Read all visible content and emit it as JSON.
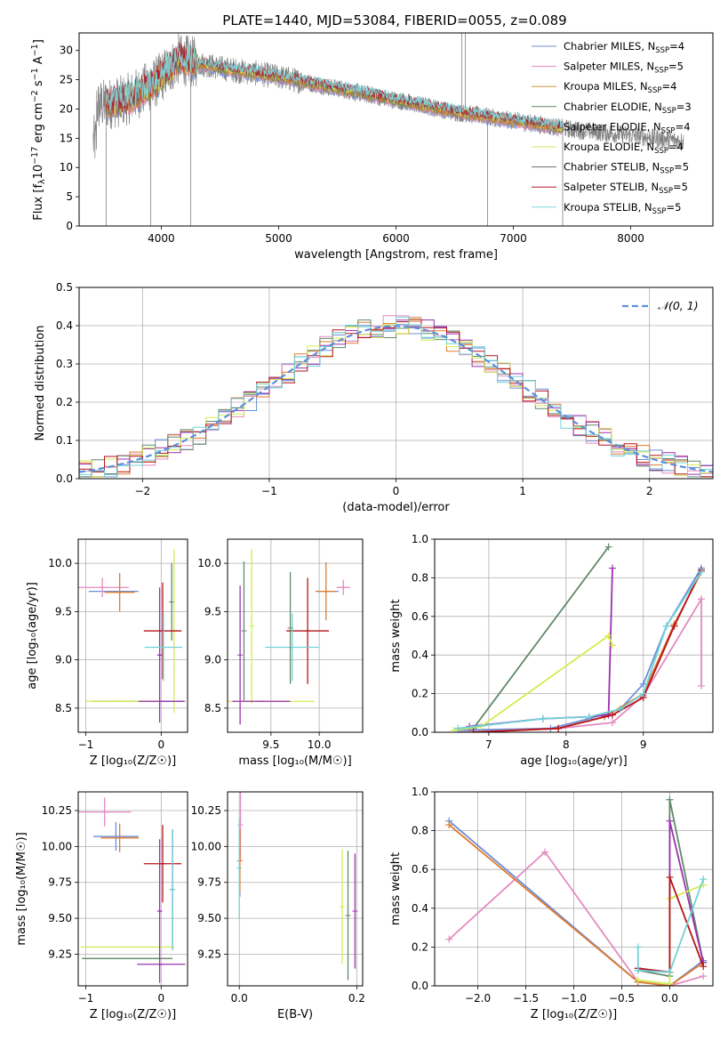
{
  "figure_title": "PLATE=1440, MJD=53084, FIBERID=0055, z=0.089",
  "colors": {
    "grid": "#b0b0b0",
    "data": "#808080",
    "series": [
      "#6a8fd8",
      "#e78ac3",
      "#c39a3a",
      "#5b8a64",
      "#d9733a",
      "#d4e157",
      "#6e6e6e",
      "#b2182b",
      "#7ed8df"
    ],
    "panel_series": [
      "#6a8fd8",
      "#e48bbf",
      "#e07b2f",
      "#5f8a6a",
      "#9b30b0",
      "#d4ec4f",
      "#b5141b",
      "#71d2d8"
    ]
  },
  "chart_data": [
    {
      "id": "spectrum",
      "type": "line",
      "title": "PLATE=1440, MJD=53084, FIBERID=0055, z=0.089",
      "xlabel": "wavelength [Angstrom, rest frame]",
      "ylabel": "Flux [fλ10⁻¹⁷ erg cm⁻² s⁻¹ Å⁻¹]",
      "ylabel_main": "Flux [f",
      "ylabel_sub": "λ",
      "ylabel_rest": "10",
      "ylabel_sup1": "−17",
      "ylabel_mid": " erg cm",
      "ylabel_sup2": "−2",
      "ylabel_mid2": " s",
      "ylabel_sup3": "−1",
      "ylabel_end": " A",
      "ylabel_sup4": "−1",
      "ylabel_close": "]",
      "xlim": [
        3300,
        8700
      ],
      "ylim": [
        0,
        33
      ],
      "xticks": [
        4000,
        5000,
        6000,
        7000,
        8000
      ],
      "yticks": [
        0,
        5,
        10,
        15,
        20,
        25,
        30
      ],
      "grid": false,
      "legend_position": "top-right",
      "legend": [
        {
          "lib": "Chabrier MILES, N",
          "sub": "SSP",
          "n": "=4"
        },
        {
          "lib": "Salpeter MILES, N",
          "sub": "SSP",
          "n": "=5"
        },
        {
          "lib": "Kroupa MILES, N",
          "sub": "SSP",
          "n": "=4"
        },
        {
          "lib": "Chabrier ELODIE, N",
          "sub": "SSP",
          "n": "=3"
        },
        {
          "lib": "Salpeter ELODIE, N",
          "sub": "SSP",
          "n": "=4"
        },
        {
          "lib": "Kroupa ELODIE, N",
          "sub": "SSP",
          "n": "=4"
        },
        {
          "lib": "Chabrier STELIB, N",
          "sub": "SSP",
          "n": "=5"
        },
        {
          "lib": "Salpeter STELIB, N",
          "sub": "SSP",
          "n": "=5"
        },
        {
          "lib": "Kroupa STELIB, N",
          "sub": "SSP",
          "n": "=5"
        }
      ],
      "continuum_anchors": [
        [
          3450,
          20.5
        ],
        [
          3700,
          21.5
        ],
        [
          3950,
          24.5
        ],
        [
          4150,
          28.5
        ],
        [
          4500,
          27
        ],
        [
          5000,
          25.5
        ],
        [
          5500,
          23.5
        ],
        [
          6000,
          21.5
        ],
        [
          6500,
          19.5
        ],
        [
          7000,
          18
        ],
        [
          7500,
          16.5
        ],
        [
          8000,
          15.5
        ],
        [
          8450,
          14.5
        ]
      ],
      "data_range": [
        3420,
        8450
      ],
      "model_range": [
        3530,
        7420
      ],
      "spikes": [
        [
          3530,
          0
        ],
        [
          3910,
          0
        ],
        [
          4250,
          0
        ],
        [
          6560,
          33
        ],
        [
          6590,
          33
        ],
        [
          6780,
          0
        ],
        [
          7420,
          0
        ]
      ]
    },
    {
      "id": "residuals",
      "type": "bar",
      "xlabel": "(data-model)/error",
      "ylabel": "Normed distribution",
      "xlim": [
        -2.5,
        2.5
      ],
      "ylim": [
        0,
        0.5
      ],
      "xticks": [
        -2,
        -1,
        0,
        1,
        2
      ],
      "xtick_labels": [
        "−2",
        "−1",
        "0",
        "1",
        "2"
      ],
      "yticks": [
        0,
        0.1,
        0.2,
        0.3,
        0.4,
        0.5
      ],
      "ytick_labels": [
        "0.0",
        "0.1",
        "0.2",
        "0.3",
        "0.4",
        "0.5"
      ],
      "grid": true,
      "legend_position": "top-right",
      "legend_label": "𝒩(0, 1)",
      "gaussian": {
        "mu": 0,
        "sigma": 1
      },
      "bin_width": 0.1
    },
    {
      "id": "age-vs-Z",
      "type": "scatter",
      "xlabel": "Z [log₁₀(Z/Z☉)]",
      "ylabel": "age  [log₁₀(age/yr)]",
      "xlim": [
        -1.1,
        0.35
      ],
      "ylim": [
        8.25,
        10.25
      ],
      "xticks": [
        -1,
        0
      ],
      "xtick_labels": [
        "−1",
        "0"
      ],
      "yticks": [
        8.5,
        9.0,
        9.5,
        10.0
      ],
      "ytick_labels": [
        "8.5",
        "9.0",
        "9.5",
        "10.0"
      ],
      "grid": true,
      "points": [
        {
          "c": 0,
          "x": -0.63,
          "y": 9.71,
          "xe": 0.33,
          "ye": 0.0
        },
        {
          "c": 1,
          "x": -0.78,
          "y": 9.75,
          "xe": 0.35,
          "ye": 0.1
        },
        {
          "c": 2,
          "x": -0.55,
          "y": 9.7,
          "xe": 0.2,
          "ye": 0.2
        },
        {
          "c": 3,
          "x": 0.14,
          "y": 9.6,
          "xe": 0.02,
          "ye": 0.4
        },
        {
          "c": 4,
          "x": -0.02,
          "y": 9.05,
          "xe": 0.02,
          "ye": 0.7
        },
        {
          "c": 5,
          "x": 0.17,
          "y": 9.3,
          "xe": 0.02,
          "ye": 0.85
        },
        {
          "c": 6,
          "x": 0.02,
          "y": 9.3,
          "xe": 0.25,
          "ye": 0.5
        },
        {
          "c": 7,
          "x": 0.03,
          "y": 9.13,
          "xe": 0.25,
          "ye": 0.35
        },
        {
          "c": 3,
          "x": -0.3,
          "y": 8.57,
          "xe": 0.62,
          "ye": 0.0
        },
        {
          "c": 5,
          "x": -0.5,
          "y": 8.57,
          "xe": 0.5,
          "ye": 0.0
        },
        {
          "c": 4,
          "x": 0.0,
          "y": 8.57,
          "xe": 0.3,
          "ye": 0.0
        }
      ]
    },
    {
      "id": "age-vs-mass",
      "type": "scatter",
      "xlabel": "mass [log₁₀(M/M☉)]",
      "xlim": [
        9.05,
        10.45
      ],
      "ylim": [
        8.25,
        10.25
      ],
      "xticks": [
        9.5,
        10.0
      ],
      "xtick_labels": [
        "9.5",
        "10.0"
      ],
      "yticks": [
        8.5,
        9.0,
        9.5,
        10.0
      ],
      "ytick_labels": [
        "8.5",
        "9.0",
        "9.5",
        "10.0"
      ],
      "grid": true,
      "points": [
        {
          "c": 0,
          "x": 10.08,
          "y": 9.71,
          "xe": 0.12,
          "ye": 0.0
        },
        {
          "c": 1,
          "x": 10.25,
          "y": 9.75,
          "xe": 0.07,
          "ye": 0.08
        },
        {
          "c": 2,
          "x": 10.07,
          "y": 9.71,
          "xe": 0.1,
          "ye": 0.3
        },
        {
          "c": 3,
          "x": 9.22,
          "y": 9.3,
          "xe": 0.0,
          "ye": 0.72
        },
        {
          "c": 4,
          "x": 9.18,
          "y": 9.05,
          "xe": 0.0,
          "ye": 0.72
        },
        {
          "c": 5,
          "x": 9.3,
          "y": 9.35,
          "xe": 0.0,
          "ye": 0.8
        },
        {
          "c": 6,
          "x": 9.88,
          "y": 9.3,
          "xe": 0.22,
          "ye": 0.55
        },
        {
          "c": 7,
          "x": 9.72,
          "y": 9.13,
          "xe": 0.28,
          "ye": 0.35
        },
        {
          "c": 3,
          "x": 9.7,
          "y": 9.33,
          "xe": 0.0,
          "ye": 0.58
        },
        {
          "c": 5,
          "x": 9.5,
          "y": 8.57,
          "xe": 0.45,
          "ye": 0.0
        },
        {
          "c": 4,
          "x": 9.4,
          "y": 8.57,
          "xe": 0.3,
          "ye": 0.0
        }
      ]
    },
    {
      "id": "weight-vs-age",
      "type": "line",
      "xlabel": "age  [log₁₀(age/yr)]",
      "ylabel": "mass weight",
      "xlim": [
        6.3,
        9.9
      ],
      "ylim": [
        0,
        1
      ],
      "xticks": [
        7,
        8,
        9
      ],
      "xtick_labels": [
        "7",
        "8",
        "9"
      ],
      "yticks": [
        0,
        0.2,
        0.4,
        0.6,
        0.8,
        1.0
      ],
      "ytick_labels": [
        "0.0",
        "0.2",
        "0.4",
        "0.6",
        "0.8",
        "1.0"
      ],
      "grid": true,
      "series": [
        {
          "c": 0,
          "x": [
            6.6,
            7.8,
            8.3,
            8.7,
            9.0,
            9.3,
            9.75
          ],
          "y": [
            0.01,
            0.02,
            0.07,
            0.12,
            0.25,
            0.55,
            0.85
          ]
        },
        {
          "c": 1,
          "x": [
            6.6,
            7.9,
            8.6,
            9.0,
            9.75,
            9.75
          ],
          "y": [
            0.0,
            0.02,
            0.05,
            0.19,
            0.69,
            0.24
          ]
        },
        {
          "c": 2,
          "x": [
            6.8,
            7.9,
            8.5,
            9.0,
            9.4,
            9.75
          ],
          "y": [
            0.0,
            0.02,
            0.08,
            0.2,
            0.56,
            0.83
          ]
        },
        {
          "c": 3,
          "x": [
            6.8,
            8.55
          ],
          "y": [
            0.02,
            0.96
          ]
        },
        {
          "c": 4,
          "x": [
            6.75,
            7.7,
            8.3,
            8.55,
            8.6
          ],
          "y": [
            0.03,
            0.07,
            0.08,
            0.09,
            0.85
          ]
        },
        {
          "c": 5,
          "x": [
            6.55,
            6.9,
            8.55,
            8.6
          ],
          "y": [
            0.01,
            0.03,
            0.5,
            0.45
          ]
        },
        {
          "c": 6,
          "x": [
            6.8,
            7.9,
            8.6,
            9.0,
            9.4,
            9.75
          ],
          "y": [
            0.0,
            0.02,
            0.09,
            0.18,
            0.55,
            0.84
          ]
        },
        {
          "c": 7,
          "x": [
            6.6,
            7.7,
            8.3,
            8.7,
            9.0,
            9.3,
            9.75
          ],
          "y": [
            0.02,
            0.07,
            0.08,
            0.12,
            0.2,
            0.55,
            0.83
          ]
        }
      ]
    },
    {
      "id": "mass-vs-Z",
      "type": "scatter",
      "xlabel": "Z [log₁₀(Z/Z☉)]",
      "ylabel": "mass [log₁₀(M/M☉)]",
      "xlim": [
        -1.1,
        0.35
      ],
      "ylim": [
        9.03,
        10.38
      ],
      "xticks": [
        -1,
        0
      ],
      "xtick_labels": [
        "−1",
        "0"
      ],
      "yticks": [
        9.25,
        9.5,
        9.75,
        10.0,
        10.25
      ],
      "ytick_labels": [
        "9.25",
        "9.50",
        "9.75",
        "10.00",
        "10.25"
      ],
      "grid": true,
      "points": [
        {
          "c": 0,
          "x": -0.6,
          "y": 10.07,
          "xe": 0.3,
          "ye": 0.1
        },
        {
          "c": 1,
          "x": -0.75,
          "y": 10.24,
          "xe": 0.35,
          "ye": 0.1
        },
        {
          "c": 2,
          "x": -0.55,
          "y": 10.06,
          "xe": 0.25,
          "ye": 0.1
        },
        {
          "c": 3,
          "x": 0.15,
          "y": 9.7,
          "xe": 0.02,
          "ye": 0.42
        },
        {
          "c": 4,
          "x": 0.0,
          "y": 9.18,
          "xe": 0.32,
          "ye": 0.0
        },
        {
          "c": 5,
          "x": -0.45,
          "y": 9.3,
          "xe": 0.62,
          "ye": 0.0
        },
        {
          "c": 6,
          "x": 0.02,
          "y": 9.88,
          "xe": 0.25,
          "ye": 0.27
        },
        {
          "c": 7,
          "x": 0.15,
          "y": 9.7,
          "xe": 0.0,
          "ye": 0.42
        },
        {
          "c": 3,
          "x": -0.45,
          "y": 9.22,
          "xe": 0.6,
          "ye": 0.0
        },
        {
          "c": 4,
          "x": -0.02,
          "y": 9.55,
          "xe": 0.02,
          "ye": 0.5
        }
      ]
    },
    {
      "id": "mass-vs-ebv",
      "type": "scatter",
      "xlabel": "E(B-V)",
      "xlim": [
        -0.02,
        0.21
      ],
      "ylim": [
        9.03,
        10.38
      ],
      "xticks": [
        0.0,
        0.2
      ],
      "xtick_labels": [
        "0.0",
        "0.2"
      ],
      "yticks": [
        9.25,
        9.5,
        9.75,
        10.0,
        10.25
      ],
      "ytick_labels": [
        "9.25",
        "9.50",
        "9.75",
        "10.00",
        "10.25"
      ],
      "grid": true,
      "points": [
        {
          "c": 0,
          "x": 0.001,
          "y": 9.9,
          "xe": 0.0,
          "ye": 0.25
        },
        {
          "c": 1,
          "x": 0.002,
          "y": 10.15,
          "xe": 0.0,
          "ye": 0.25
        },
        {
          "c": 2,
          "x": 0.001,
          "y": 9.9,
          "xe": 0.0,
          "ye": 0.22
        },
        {
          "c": 7,
          "x": 0.0,
          "y": 9.85,
          "xe": 0.0,
          "ye": 0.35
        },
        {
          "c": 5,
          "x": 0.175,
          "y": 9.58,
          "xe": 0.0,
          "ye": 0.4
        },
        {
          "c": 3,
          "x": 0.185,
          "y": 9.52,
          "xe": 0.0,
          "ye": 0.45
        },
        {
          "c": 4,
          "x": 0.197,
          "y": 9.55,
          "xe": 0.0,
          "ye": 0.4
        }
      ]
    },
    {
      "id": "weight-vs-Z",
      "type": "line",
      "xlabel": "Z [log₁₀(Z/Z☉)]",
      "ylabel": "mass weight",
      "xlim": [
        -2.45,
        0.45
      ],
      "ylim": [
        0,
        1
      ],
      "xticks": [
        -2.0,
        -1.5,
        -1.0,
        -0.5,
        0.0
      ],
      "xtick_labels": [
        "−2.0",
        "−1.5",
        "−1.0",
        "−0.5",
        "0.0"
      ],
      "yticks": [
        0,
        0.2,
        0.4,
        0.6,
        0.8,
        1.0
      ],
      "ytick_labels": [
        "0.0",
        "0.2",
        "0.4",
        "0.6",
        "0.8",
        "1.0"
      ],
      "grid": true,
      "series": [
        {
          "c": 0,
          "x": [
            -2.3,
            -0.33,
            0.0,
            0.35
          ],
          "y": [
            0.85,
            0.02,
            0.0,
            0.13
          ]
        },
        {
          "c": 1,
          "x": [
            -2.3,
            -1.3,
            -0.33,
            0.0,
            0.35
          ],
          "y": [
            0.24,
            0.69,
            0.02,
            0.0,
            0.05
          ]
        },
        {
          "c": 2,
          "x": [
            -2.3,
            -0.33,
            0.0,
            0.35
          ],
          "y": [
            0.83,
            0.02,
            0.0,
            0.12
          ]
        },
        {
          "c": 3,
          "x": [
            -0.33,
            0.0,
            0.0,
            0.35
          ],
          "y": [
            0.08,
            0.05,
            0.96,
            0.12
          ]
        },
        {
          "c": 4,
          "x": [
            -0.33,
            0.0,
            0.0,
            0.35
          ],
          "y": [
            0.09,
            0.07,
            0.85,
            0.12
          ]
        },
        {
          "c": 5,
          "x": [
            -0.33,
            0.0,
            0.0,
            0.35
          ],
          "y": [
            0.03,
            0.01,
            0.45,
            0.52
          ]
        },
        {
          "c": 6,
          "x": [
            -0.33,
            0.0,
            0.0,
            0.35
          ],
          "y": [
            0.09,
            0.07,
            0.56,
            0.1
          ]
        },
        {
          "c": 7,
          "x": [
            -0.33,
            -0.33,
            0.0,
            0.35
          ],
          "y": [
            0.2,
            0.08,
            0.07,
            0.55
          ]
        }
      ]
    }
  ]
}
